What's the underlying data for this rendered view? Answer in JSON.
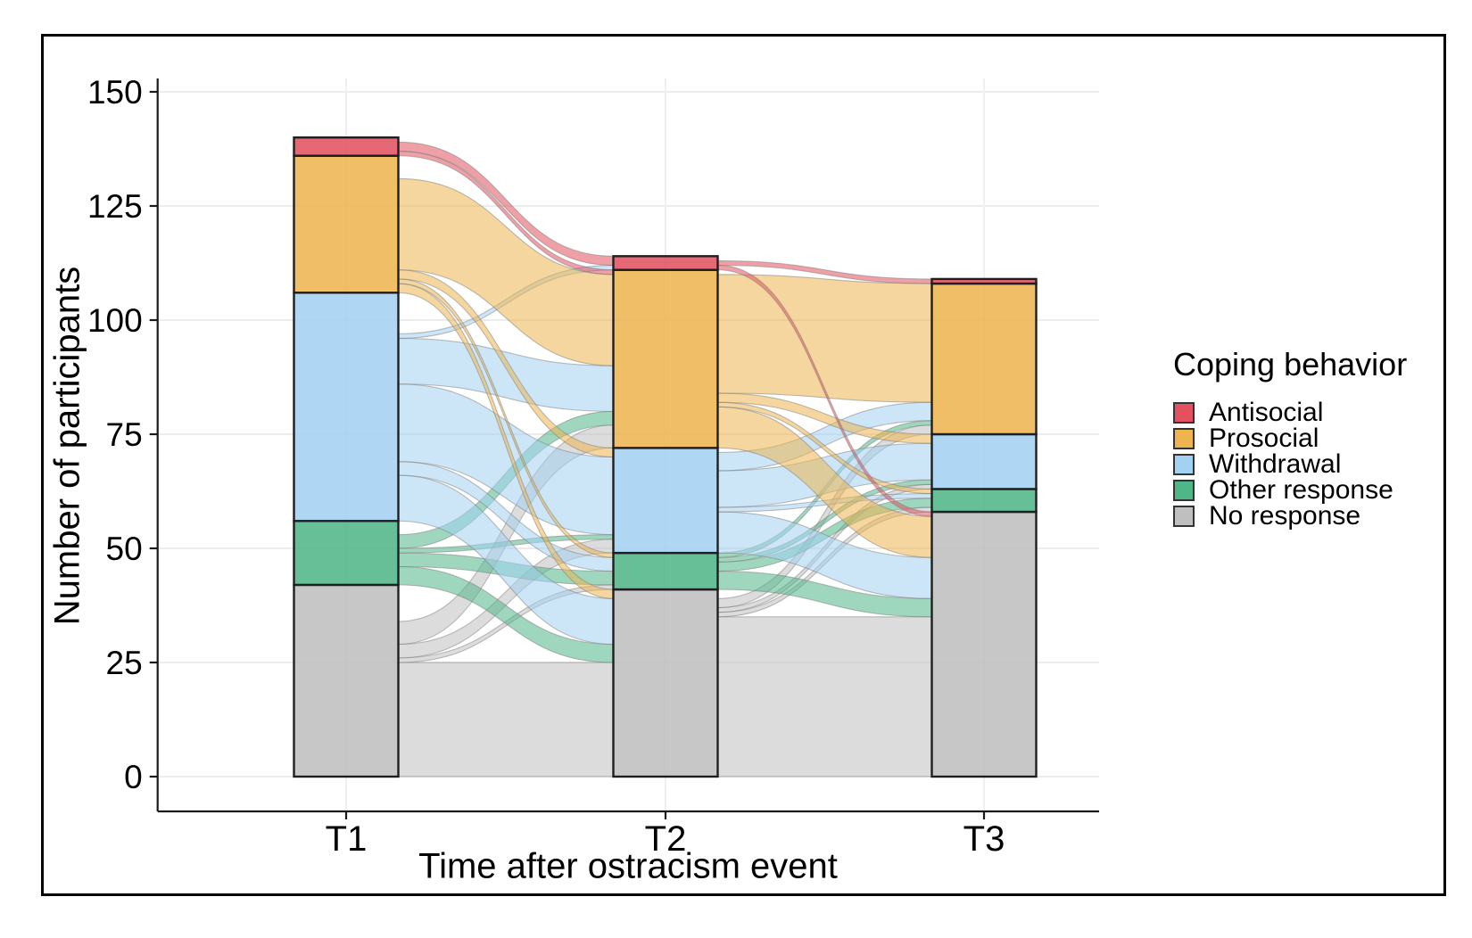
{
  "chart_data": {
    "type": "alluvial",
    "x_axis": {
      "title": "Time after ostracism event",
      "categories": [
        "T1",
        "T2",
        "T3"
      ]
    },
    "y_axis": {
      "title": "Number of participants",
      "ticks": [
        0,
        25,
        50,
        75,
        100,
        125,
        150
      ],
      "ylim": [
        0,
        157
      ]
    },
    "legend": {
      "title": "Coping behavior",
      "position": "right"
    },
    "grid": "on",
    "strata": [
      {
        "name": "Antisocial",
        "color": "#E2525F"
      },
      {
        "name": "Prosocial",
        "color": "#EDB44F"
      },
      {
        "name": "Withdrawal",
        "color": "#A3D1F2"
      },
      {
        "name": "Other response",
        "color": "#4FB688"
      },
      {
        "name": "No response",
        "color": "#BFBFBF"
      }
    ],
    "bar_totals": {
      "T1": 140,
      "T2": 114,
      "T3": 109
    },
    "counts_by_time": {
      "T1": [
        4,
        30,
        50,
        14,
        42
      ],
      "T2": [
        3,
        39,
        23,
        8,
        41
      ],
      "T3": [
        1,
        33,
        12,
        5,
        58
      ]
    },
    "flows": [
      {
        "from": "T1",
        "to": "T2",
        "matrix_rows_source_cols_target": [
          [
            2,
            1,
            0,
            0,
            0
          ],
          [
            0,
            20,
            2,
            1,
            2
          ],
          [
            1,
            10,
            17,
            3,
            10
          ],
          [
            0,
            3,
            1,
            3,
            4
          ],
          [
            0,
            5,
            3,
            1,
            25
          ]
        ]
      },
      {
        "from": "T2",
        "to": "T3",
        "matrix_rows_source_cols_target": [
          [
            1,
            0,
            0,
            0,
            1
          ],
          [
            0,
            26,
            2,
            1,
            9
          ],
          [
            0,
            4,
            8,
            1,
            9
          ],
          [
            0,
            1,
            1,
            2,
            4
          ],
          [
            0,
            2,
            1,
            1,
            35
          ]
        ]
      }
    ]
  }
}
